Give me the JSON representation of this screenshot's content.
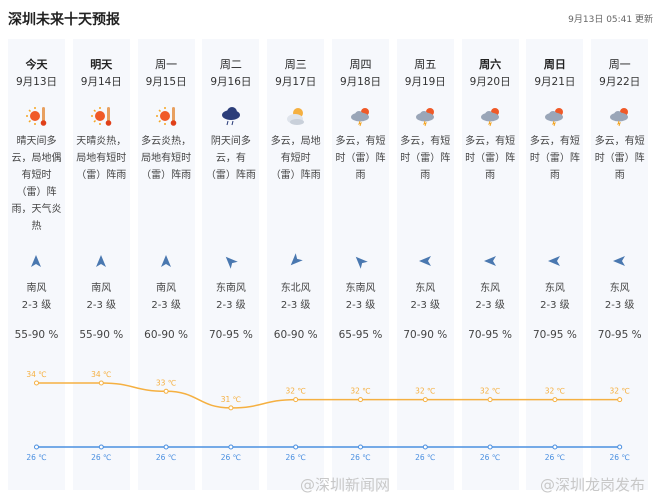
{
  "header": {
    "title": "深圳未来十天预报",
    "updated": "9月13日 05:41 更新"
  },
  "days": [
    {
      "weekday": "今天",
      "date": "9月13日",
      "icon": "sunny-hot-icon",
      "desc": "晴天间多云，局地偶有短时（雷）阵雨，天气炎热",
      "wind_dir": "南风",
      "wind_level": "2-3 级",
      "wind_arrow": "up",
      "humidity": "55-90 %",
      "high": "34 ℃",
      "low": "26 ℃"
    },
    {
      "weekday": "明天",
      "date": "9月14日",
      "icon": "sunny-hot-icon",
      "desc": "天晴炎热，局地有短时（雷）阵雨",
      "wind_dir": "南风",
      "wind_level": "2-3 级",
      "wind_arrow": "up",
      "humidity": "55-90 %",
      "high": "34 ℃",
      "low": "26 ℃"
    },
    {
      "weekday": "周一",
      "date": "9月15日",
      "icon": "sunny-hot-icon",
      "desc": "多云炎热，局地有短时（雷）阵雨",
      "wind_dir": "南风",
      "wind_level": "2-3 级",
      "wind_arrow": "up",
      "humidity": "60-90 %",
      "high": "33 ℃",
      "low": "26 ℃"
    },
    {
      "weekday": "周二",
      "date": "9月16日",
      "icon": "rain-cloud-icon",
      "desc": "阴天间多云，有（雷）阵雨",
      "wind_dir": "东南风",
      "wind_level": "2-3 级",
      "wind_arrow": "nw",
      "humidity": "70-95 %",
      "high": "31 ℃",
      "low": "26 ℃"
    },
    {
      "weekday": "周三",
      "date": "9月17日",
      "icon": "partly-cloudy-icon",
      "desc": "多云，局地有短时（雷）阵雨",
      "wind_dir": "东北风",
      "wind_level": "2-3 级",
      "wind_arrow": "sw",
      "humidity": "60-90 %",
      "high": "32 ℃",
      "low": "26 ℃"
    },
    {
      "weekday": "周四",
      "date": "9月18日",
      "icon": "thunder-shower-icon",
      "desc": "多云，有短时（雷）阵雨",
      "wind_dir": "东南风",
      "wind_level": "2-3 级",
      "wind_arrow": "nw",
      "humidity": "65-95 %",
      "high": "32 ℃",
      "low": "26 ℃"
    },
    {
      "weekday": "周五",
      "date": "9月19日",
      "icon": "thunder-shower-icon",
      "desc": "多云，有短时（雷）阵雨",
      "wind_dir": "东风",
      "wind_level": "2-3 级",
      "wind_arrow": "left",
      "humidity": "70-90 %",
      "high": "32 ℃",
      "low": "26 ℃"
    },
    {
      "weekday": "周六",
      "date": "9月20日",
      "icon": "thunder-shower-icon",
      "desc": "多云，有短时（雷）阵雨",
      "wind_dir": "东风",
      "wind_level": "2-3 级",
      "wind_arrow": "left",
      "humidity": "70-95 %",
      "high": "32 ℃",
      "low": "26 ℃"
    },
    {
      "weekday": "周日",
      "date": "9月21日",
      "icon": "thunder-shower-icon",
      "desc": "多云，有短时（雷）阵雨",
      "wind_dir": "东风",
      "wind_level": "2-3 级",
      "wind_arrow": "left",
      "humidity": "70-95 %",
      "high": "32 ℃",
      "low": "26 ℃"
    },
    {
      "weekday": "周一",
      "date": "9月22日",
      "icon": "thunder-shower-icon",
      "desc": "多云，有短时（雷）阵雨",
      "wind_dir": "东风",
      "wind_level": "2-3 级",
      "wind_arrow": "left",
      "humidity": "70-95 %",
      "high": "32 ℃",
      "low": "26 ℃"
    }
  ],
  "chart_data": {
    "type": "line",
    "categories": [
      "9月13日",
      "9月14日",
      "9月15日",
      "9月16日",
      "9月17日",
      "9月18日",
      "9月19日",
      "9月20日",
      "9月21日",
      "9月22日"
    ],
    "series": [
      {
        "values": [
          34,
          34,
          33,
          31,
          32,
          32,
          32,
          32,
          32,
          32
        ],
        "color": "#f5b041"
      },
      {
        "values": [
          26,
          26,
          26,
          26,
          26,
          26,
          26,
          26,
          26,
          26
        ],
        "color": "#4a8fe0"
      }
    ]
  },
  "watermarks": [
    "@深圳新闻网",
    "@深圳龙岗发布"
  ]
}
